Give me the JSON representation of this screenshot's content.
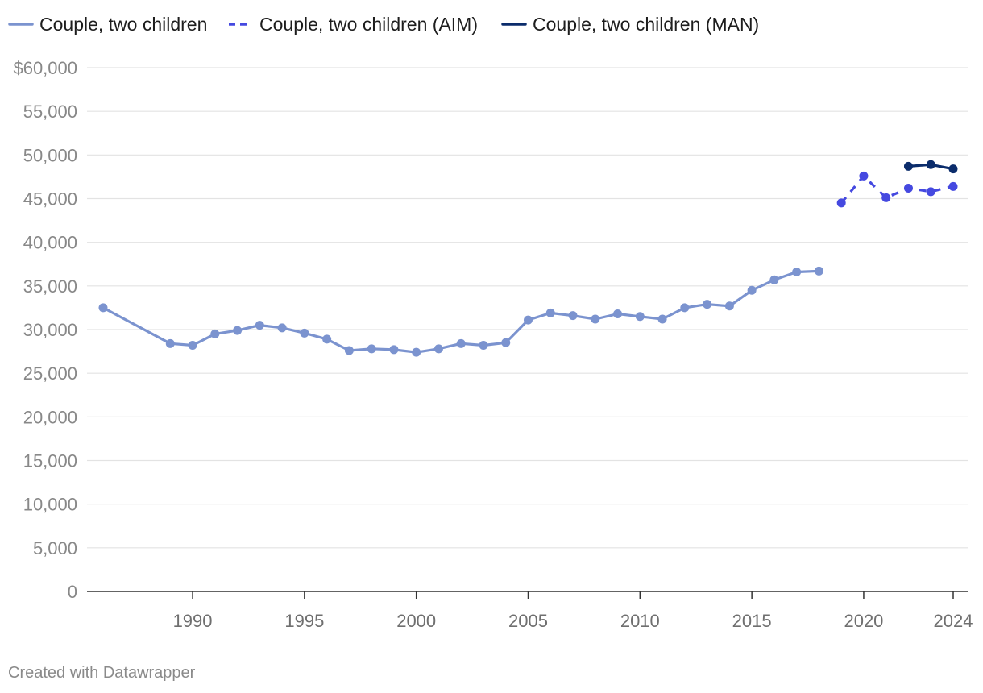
{
  "chart_data": {
    "type": "line",
    "title": "",
    "xlabel": "",
    "ylabel": "",
    "xlim": [
      1986,
      2024
    ],
    "ylim": [
      0,
      60000
    ],
    "grid": true,
    "legend_position": "top-left",
    "y_ticks": [
      {
        "value": 60000,
        "label": "$60,000"
      },
      {
        "value": 55000,
        "label": "55,000"
      },
      {
        "value": 50000,
        "label": "50,000"
      },
      {
        "value": 45000,
        "label": "45,000"
      },
      {
        "value": 40000,
        "label": "40,000"
      },
      {
        "value": 35000,
        "label": "35,000"
      },
      {
        "value": 30000,
        "label": "30,000"
      },
      {
        "value": 25000,
        "label": "25,000"
      },
      {
        "value": 20000,
        "label": "20,000"
      },
      {
        "value": 15000,
        "label": "15,000"
      },
      {
        "value": 10000,
        "label": "10,000"
      },
      {
        "value": 5000,
        "label": "5,000"
      },
      {
        "value": 0,
        "label": "0"
      }
    ],
    "x_ticks": [
      {
        "value": 1990,
        "label": "1990"
      },
      {
        "value": 1995,
        "label": "1995"
      },
      {
        "value": 2000,
        "label": "2000"
      },
      {
        "value": 2005,
        "label": "2005"
      },
      {
        "value": 2010,
        "label": "2010"
      },
      {
        "value": 2015,
        "label": "2015"
      },
      {
        "value": 2020,
        "label": "2020"
      },
      {
        "value": 2024,
        "label": "2024"
      }
    ],
    "series": [
      {
        "name": "Couple, two children",
        "color": "#7b93cf",
        "dashed": false,
        "points": [
          [
            1986,
            32500
          ],
          [
            1989,
            28400
          ],
          [
            1990,
            28200
          ],
          [
            1991,
            29500
          ],
          [
            1992,
            29900
          ],
          [
            1993,
            30500
          ],
          [
            1994,
            30200
          ],
          [
            1995,
            29600
          ],
          [
            1996,
            28900
          ],
          [
            1997,
            27600
          ],
          [
            1998,
            27800
          ],
          [
            1999,
            27700
          ],
          [
            2000,
            27400
          ],
          [
            2001,
            27800
          ],
          [
            2002,
            28400
          ],
          [
            2003,
            28200
          ],
          [
            2004,
            28500
          ],
          [
            2005,
            31100
          ],
          [
            2006,
            31900
          ],
          [
            2007,
            31600
          ],
          [
            2008,
            31200
          ],
          [
            2009,
            31800
          ],
          [
            2010,
            31500
          ],
          [
            2011,
            31200
          ],
          [
            2012,
            32500
          ],
          [
            2013,
            32900
          ],
          [
            2014,
            32700
          ],
          [
            2015,
            34500
          ],
          [
            2016,
            35700
          ],
          [
            2017,
            36600
          ],
          [
            2018,
            36700
          ]
        ]
      },
      {
        "name": "Couple, two children (AIM)",
        "color": "#4549e0",
        "dashed": true,
        "points": [
          [
            2019,
            44500
          ],
          [
            2020,
            47600
          ],
          [
            2021,
            45100
          ],
          [
            2022,
            46200
          ],
          [
            2023,
            45800
          ],
          [
            2024,
            46400
          ]
        ]
      },
      {
        "name": "Couple, two children (MAN)",
        "color": "#0b2c6b",
        "dashed": false,
        "points": [
          [
            2022,
            48700
          ],
          [
            2023,
            48900
          ],
          [
            2024,
            48400
          ]
        ]
      }
    ]
  },
  "footer": {
    "credit": "Created with Datawrapper"
  }
}
